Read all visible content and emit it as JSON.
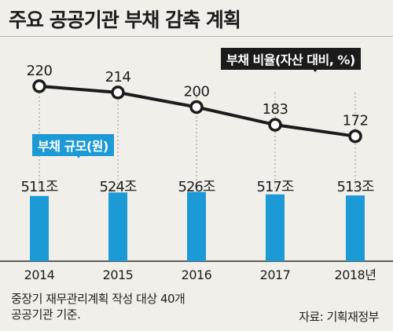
{
  "title": "주요 공공기관 부채 감축 계획",
  "ratio_label": "부채 비율(자산 대비, %)",
  "size_label": "부채 규모(원)",
  "footnote": [
    "중장기 재무관리계획 작성 대상 40개",
    "공공기관 기준."
  ],
  "source": "자료: 기획재정부",
  "colors": {
    "background": "#f1efe9",
    "bar": "#1c9ad6",
    "line": "#1b1b1b",
    "marker_fill": "#ffffff"
  },
  "chart_data": {
    "type": "bar+line",
    "title": "주요 공공기관 부채 감축 계획",
    "categories": [
      "2014",
      "2015",
      "2016",
      "2017",
      "2018년"
    ],
    "series": [
      {
        "name": "부채 규모(원)",
        "type": "bar",
        "values": [
          511,
          524,
          526,
          517,
          513
        ],
        "labels": [
          "511조",
          "524조",
          "526조",
          "517조",
          "513조"
        ]
      },
      {
        "name": "부채 비율(자산 대비, %)",
        "type": "line",
        "values": [
          220,
          214,
          200,
          183,
          172
        ],
        "labels": [
          "220",
          "214",
          "200",
          "183",
          "172"
        ]
      }
    ],
    "grid": false
  }
}
